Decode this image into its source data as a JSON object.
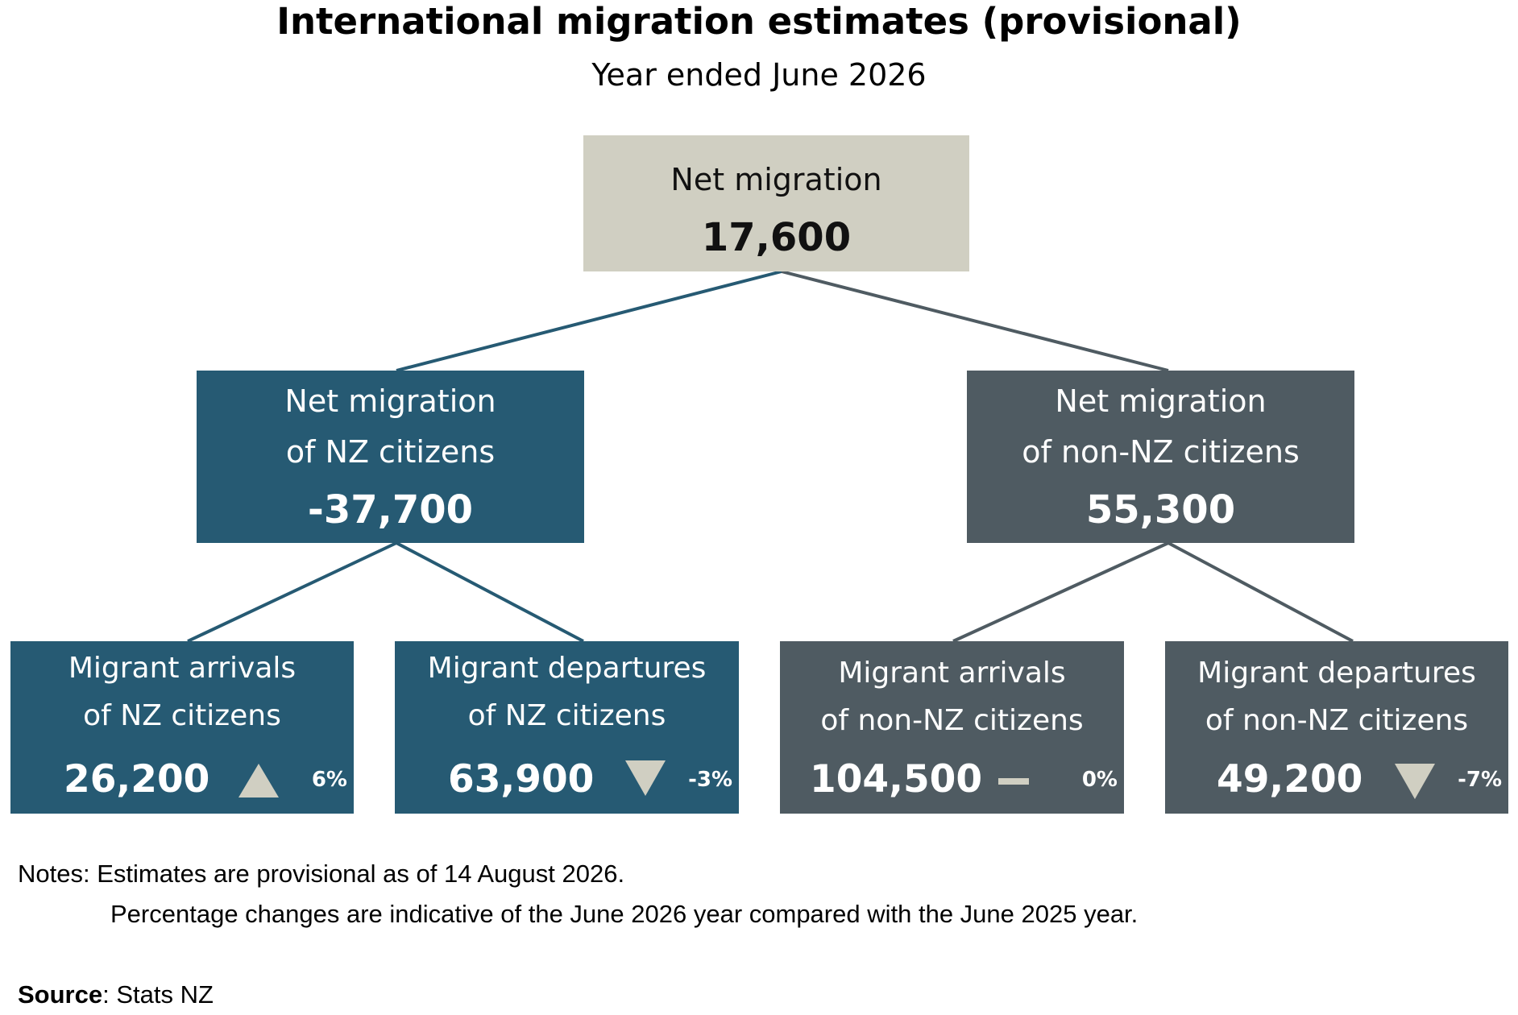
{
  "title": "International migration estimates (provisional)",
  "subtitle": "Year ended June 2026",
  "colors": {
    "top_box": "#d0cfc2",
    "nz_citizens": "#265a73",
    "non_nz_citizens": "#4f5b62",
    "indicator": "#d0cfc2"
  },
  "tree": {
    "root": {
      "label": "Net migration",
      "value": "17,600"
    },
    "nz": {
      "label_line1": "Net migration",
      "label_line2": "of NZ citizens",
      "value": "-37,700",
      "arrivals": {
        "label_line1": "Migrant arrivals",
        "label_line2": "of NZ citizens",
        "value": "26,200",
        "indicator": "up-triangle-icon",
        "change": "6%"
      },
      "departures": {
        "label_line1": "Migrant departures",
        "label_line2": "of NZ citizens",
        "value": "63,900",
        "indicator": "down-triangle-icon",
        "change": "-3%"
      }
    },
    "non_nz": {
      "label_line1": "Net migration",
      "label_line2": "of non-NZ citizens",
      "value": "55,300",
      "arrivals": {
        "label_line1": "Migrant arrivals",
        "label_line2": "of non-NZ citizens",
        "value": "104,500",
        "indicator": "dash-icon",
        "change": "0%"
      },
      "departures": {
        "label_line1": "Migrant departures",
        "label_line2": "of non-NZ citizens",
        "value": "49,200",
        "indicator": "down-triangle-icon",
        "change": "-7%"
      }
    }
  },
  "notes": {
    "label": "Notes:",
    "line1": "Estimates are provisional as of 14 August 2026.",
    "line2": "Percentage changes are indicative of the June 2026 year compared with the June 2025 year."
  },
  "source": {
    "label": "Source",
    "text": ": Stats NZ"
  }
}
